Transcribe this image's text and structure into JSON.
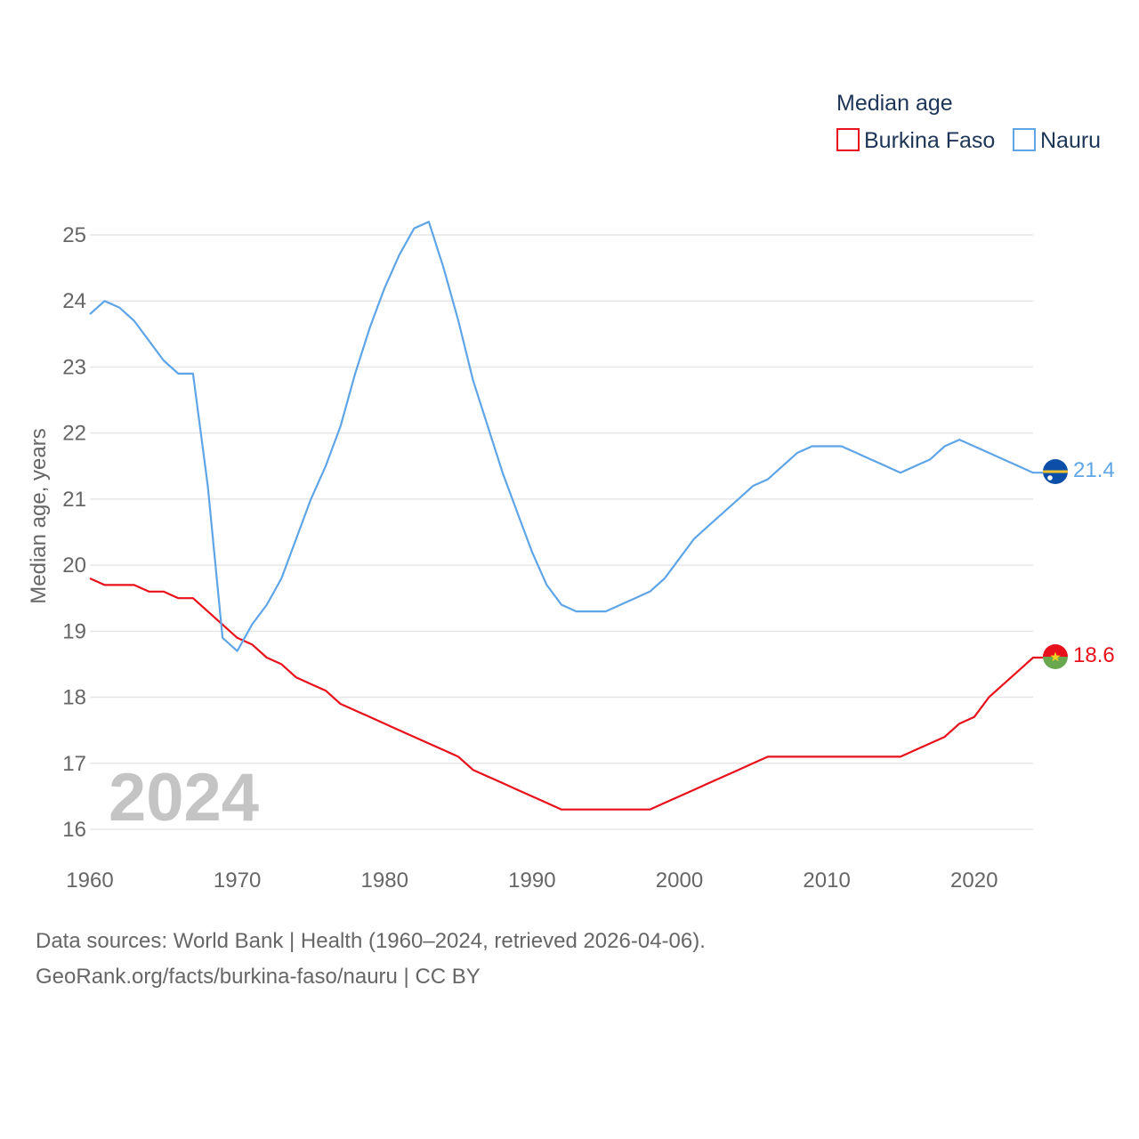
{
  "chart_data": {
    "type": "line",
    "legend_title": "Median age",
    "ylabel": "Median age, years",
    "xlabel": "",
    "current_year": "2024",
    "xlim": [
      1960,
      2024
    ],
    "ylim": [
      16,
      25
    ],
    "x_ticks": [
      "1960",
      "1970",
      "1980",
      "1990",
      "2000",
      "2010",
      "2020"
    ],
    "y_ticks": [
      "16",
      "17",
      "18",
      "19",
      "20",
      "21",
      "22",
      "23",
      "24",
      "25"
    ],
    "legend_position": "top-right",
    "x": [
      1960,
      1961,
      1962,
      1963,
      1964,
      1965,
      1966,
      1967,
      1968,
      1969,
      1970,
      1971,
      1972,
      1973,
      1974,
      1975,
      1976,
      1977,
      1978,
      1979,
      1980,
      1981,
      1982,
      1983,
      1984,
      1985,
      1986,
      1987,
      1988,
      1989,
      1990,
      1991,
      1992,
      1993,
      1994,
      1995,
      1996,
      1997,
      1998,
      1999,
      2000,
      2001,
      2002,
      2003,
      2004,
      2005,
      2006,
      2007,
      2008,
      2009,
      2010,
      2011,
      2012,
      2013,
      2014,
      2015,
      2016,
      2017,
      2018,
      2019,
      2020,
      2021,
      2022,
      2023,
      2024
    ],
    "series": [
      {
        "name": "Burkina Faso",
        "color": "#e8101a",
        "end_label": "18.6",
        "values": [
          19.8,
          19.7,
          19.7,
          19.7,
          19.6,
          19.6,
          19.5,
          19.5,
          19.3,
          19.1,
          18.9,
          18.8,
          18.6,
          18.5,
          18.3,
          18.2,
          18.1,
          17.9,
          17.8,
          17.7,
          17.6,
          17.5,
          17.4,
          17.3,
          17.2,
          17.1,
          16.9,
          16.8,
          16.7,
          16.6,
          16.5,
          16.4,
          16.3,
          16.3,
          16.3,
          16.3,
          16.3,
          16.3,
          16.3,
          16.4,
          16.5,
          16.6,
          16.7,
          16.8,
          16.9,
          17.0,
          17.1,
          17.1,
          17.1,
          17.1,
          17.1,
          17.1,
          17.1,
          17.1,
          17.1,
          17.1,
          17.2,
          17.3,
          17.4,
          17.6,
          17.7,
          18.0,
          18.2,
          18.4,
          18.6
        ]
      },
      {
        "name": "Nauru",
        "color": "#5ea5e8",
        "end_label": "21.4",
        "values": [
          23.8,
          24.0,
          23.9,
          23.7,
          23.4,
          23.1,
          22.9,
          22.9,
          21.2,
          18.9,
          18.7,
          19.1,
          19.4,
          19.8,
          20.4,
          21.0,
          21.5,
          22.1,
          22.9,
          23.6,
          24.2,
          24.7,
          25.1,
          25.2,
          24.5,
          23.7,
          22.8,
          22.1,
          21.4,
          20.8,
          20.2,
          19.7,
          19.4,
          19.3,
          19.3,
          19.3,
          19.4,
          19.5,
          19.6,
          19.8,
          20.1,
          20.4,
          20.6,
          20.8,
          21.0,
          21.2,
          21.3,
          21.5,
          21.7,
          21.8,
          21.8,
          21.8,
          21.7,
          21.6,
          21.5,
          21.4,
          21.5,
          21.6,
          21.8,
          21.9,
          21.8,
          21.7,
          21.6,
          21.5,
          21.4
        ]
      }
    ]
  },
  "footer": {
    "line1": "Data sources: World Bank | Health (1960–2024, retrieved 2026-04-06).",
    "line2": "GeoRank.org/facts/burkina-faso/nauru | CC BY"
  }
}
